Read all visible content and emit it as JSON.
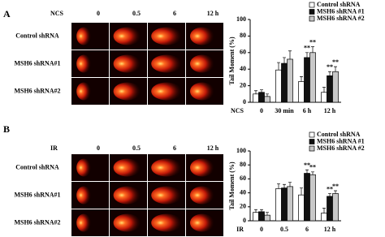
{
  "panels": [
    {
      "label": "A",
      "treatment": "NCS",
      "columns": [
        "0",
        "0.5",
        "6",
        "12  h"
      ],
      "rows": [
        "Control shRNA",
        "MSH6 shRNA#1",
        "MSH6 shRNA#2"
      ]
    },
    {
      "label": "B",
      "treatment": "IR",
      "columns": [
        "0",
        "0.5",
        "6",
        "12  h"
      ],
      "rows": [
        "Control shRNA",
        "MSH6 shRNA#1",
        "MSH6 shRNA#2"
      ]
    }
  ],
  "chart_data": [
    {
      "type": "bar",
      "ylabel": "Tail Moment (%)",
      "xlabel": "NCS",
      "categories": [
        "0",
        "30 min",
        "6 h",
        "12  h"
      ],
      "ylim": [
        0,
        100
      ],
      "yticks": [
        0,
        20,
        40,
        60,
        80,
        100
      ],
      "legend": "top-right",
      "series": [
        {
          "name": "Control shRNA",
          "color": "#ffffff",
          "values": [
            10,
            39,
            25,
            12
          ],
          "errors": [
            4,
            9,
            6,
            6
          ],
          "significance": [
            null,
            null,
            null,
            null
          ]
        },
        {
          "name": "MSH6 shRNA #1",
          "color": "#111111",
          "values": [
            12,
            47,
            54,
            32
          ],
          "errors": [
            3,
            7,
            6,
            5
          ],
          "significance": [
            null,
            null,
            "**",
            "**"
          ]
        },
        {
          "name": "MSH6 shRNA #2",
          "color": "#c8c8c8",
          "values": [
            7,
            52,
            60,
            37
          ],
          "errors": [
            3,
            10,
            7,
            6
          ],
          "significance": [
            null,
            null,
            "**",
            "**"
          ]
        }
      ]
    },
    {
      "type": "bar",
      "ylabel": "Tail Moment (%)",
      "xlabel": "IR",
      "categories": [
        "0",
        "0.5",
        "6",
        "12  h"
      ],
      "ylim": [
        0,
        100
      ],
      "yticks": [
        0,
        20,
        40,
        60,
        80,
        100
      ],
      "legend": "top-right",
      "series": [
        {
          "name": "Control shRNA",
          "color": "#ffffff",
          "values": [
            12,
            46,
            37,
            11
          ],
          "errors": [
            4,
            7,
            10,
            7
          ],
          "significance": [
            null,
            null,
            null,
            null
          ]
        },
        {
          "name": "MSH6 shRNA #1",
          "color": "#111111",
          "values": [
            13,
            47,
            68,
            35
          ],
          "errors": [
            3,
            5,
            5,
            4
          ],
          "significance": [
            null,
            null,
            "**",
            "**"
          ]
        },
        {
          "name": "MSH6 shRNA #2",
          "color": "#c8c8c8",
          "values": [
            8,
            49,
            66,
            39
          ],
          "errors": [
            4,
            6,
            4,
            4
          ],
          "significance": [
            null,
            null,
            "**",
            "**"
          ]
        }
      ]
    }
  ]
}
